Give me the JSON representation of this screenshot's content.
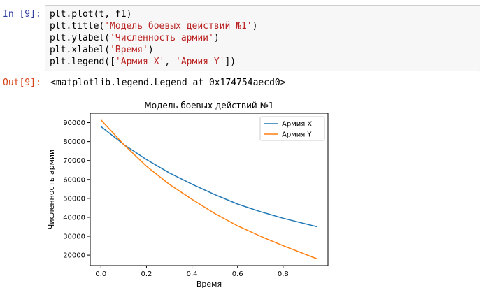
{
  "input_cell": {
    "prompt": "In [9]:",
    "lines": [
      {
        "code": "plt.plot(t, f1)",
        "strings": []
      },
      {
        "code": "plt.title(",
        "strings": [
          "'Модель боевых действий №1'"
        ],
        "tail": ")"
      },
      {
        "code": "plt.ylabel(",
        "strings": [
          "'Численность армии'"
        ],
        "tail": ")"
      },
      {
        "code": "plt.xlabel(",
        "strings": [
          "'Время'"
        ],
        "tail": ")"
      },
      {
        "code": "plt.legend([",
        "strings": [
          "'Армия X'",
          ", ",
          "'Армия Y'"
        ],
        "tail": "])"
      }
    ]
  },
  "output_cell": {
    "prompt": "Out[9]:",
    "text": "<matplotlib.legend.Legend at 0x174754aecd0>"
  },
  "chart_data": {
    "type": "line",
    "title": "Модель боевых действий №1",
    "xlabel": "Время",
    "ylabel": "Численность армии",
    "xlim": [
      -0.047,
      0.997
    ],
    "ylim": [
      14500,
      95000
    ],
    "xticks": [
      0.0,
      0.2,
      0.4,
      0.6,
      0.8
    ],
    "xtick_labels": [
      "0.0",
      "0.2",
      "0.4",
      "0.6",
      "0.8"
    ],
    "yticks": [
      20000,
      30000,
      40000,
      50000,
      60000,
      70000,
      80000,
      90000
    ],
    "ytick_labels": [
      "20000",
      "30000",
      "40000",
      "50000",
      "60000",
      "70000",
      "80000",
      "90000"
    ],
    "legend_position": "top-right",
    "grid": false,
    "series": [
      {
        "name": "Армия X",
        "color": "#1f77b4",
        "x": [
          0.0,
          0.1,
          0.2,
          0.3,
          0.4,
          0.5,
          0.6,
          0.7,
          0.8,
          0.95
        ],
        "y": [
          88000,
          78500,
          70500,
          63500,
          57500,
          52000,
          47000,
          43000,
          39500,
          35000
        ]
      },
      {
        "name": "Армия Y",
        "color": "#ff7f0e",
        "x": [
          0.0,
          0.1,
          0.2,
          0.3,
          0.4,
          0.5,
          0.6,
          0.7,
          0.8,
          0.95
        ],
        "y": [
          91500,
          78500,
          67000,
          57500,
          49500,
          42000,
          35500,
          30000,
          25000,
          18000
        ]
      }
    ]
  }
}
